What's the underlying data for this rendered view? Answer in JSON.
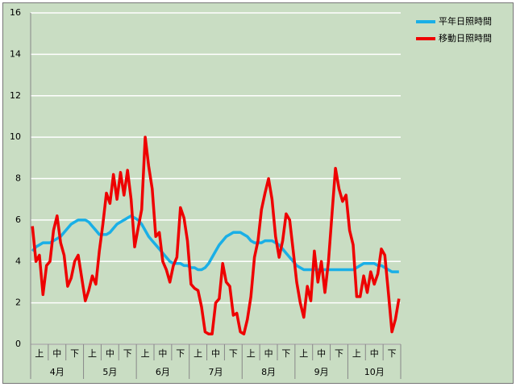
{
  "chart_data": {
    "type": "line",
    "categories": [
      null,
      null,
      "上",
      null,
      null,
      null,
      null,
      "中",
      null,
      null,
      null,
      null,
      "下",
      null,
      null,
      null,
      null,
      "上",
      null,
      null,
      null,
      null,
      "中",
      null,
      null,
      null,
      null,
      "下",
      null,
      null,
      null,
      null,
      "上",
      null,
      null,
      null,
      null,
      "中",
      null,
      null,
      null,
      null,
      "下",
      null,
      null,
      null,
      null,
      "上",
      null,
      null,
      null,
      null,
      "中",
      null,
      null,
      null,
      null,
      "下",
      null,
      null,
      null,
      null,
      "上",
      null,
      null,
      null,
      null,
      "中",
      null,
      null,
      null,
      null,
      "下",
      null,
      null,
      null,
      null,
      "上",
      null,
      null,
      null,
      null,
      "中",
      null,
      null,
      null,
      null,
      "下",
      null,
      null,
      null,
      null,
      "上",
      null,
      null,
      null,
      null,
      "中",
      null,
      null,
      null,
      null,
      "下",
      null,
      null
    ],
    "months": [
      "4月",
      "5月",
      "6月",
      "7月",
      "8月",
      "9月",
      "10月"
    ],
    "series": [
      {
        "name": "平年日照時間",
        "color": "#1aafe6",
        "values": [
          4.5,
          4.7,
          4.8,
          4.9,
          4.9,
          4.9,
          5.0,
          5.1,
          5.2,
          5.4,
          5.6,
          5.8,
          5.9,
          6.0,
          6.0,
          6.0,
          5.9,
          5.7,
          5.5,
          5.3,
          5.3,
          5.3,
          5.4,
          5.6,
          5.8,
          5.9,
          6.0,
          6.1,
          6.2,
          6.1,
          6.0,
          5.8,
          5.5,
          5.2,
          5.0,
          4.8,
          4.6,
          4.4,
          4.2,
          4.0,
          3.9,
          3.9,
          3.9,
          3.8,
          3.8,
          3.7,
          3.7,
          3.6,
          3.6,
          3.7,
          3.9,
          4.2,
          4.5,
          4.8,
          5.0,
          5.2,
          5.3,
          5.4,
          5.4,
          5.4,
          5.3,
          5.2,
          5.0,
          4.9,
          4.9,
          4.9,
          5.0,
          5.0,
          5.0,
          4.9,
          4.8,
          4.6,
          4.4,
          4.2,
          4.0,
          3.8,
          3.7,
          3.6,
          3.6,
          3.6,
          3.6,
          3.6,
          3.6,
          3.6,
          3.6,
          3.6,
          3.6,
          3.6,
          3.6,
          3.6,
          3.6,
          3.6,
          3.7,
          3.8,
          3.9,
          3.9,
          3.9,
          3.9,
          3.8,
          3.8,
          3.7,
          3.6,
          3.5,
          3.5,
          3.5
        ]
      },
      {
        "name": "移動日照時間",
        "color": "#ee0000",
        "values": [
          5.7,
          4.0,
          4.3,
          2.4,
          3.8,
          4.0,
          5.5,
          6.2,
          4.9,
          4.3,
          2.8,
          3.2,
          4.0,
          4.3,
          3.2,
          2.1,
          2.6,
          3.3,
          2.9,
          4.5,
          5.8,
          7.3,
          6.8,
          8.2,
          7.0,
          8.3,
          7.2,
          8.4,
          7.0,
          4.7,
          5.6,
          6.5,
          10.0,
          8.6,
          7.5,
          5.2,
          5.4,
          4.0,
          3.6,
          3.0,
          3.8,
          4.2,
          6.6,
          6.1,
          5.0,
          2.9,
          2.7,
          2.6,
          1.8,
          0.6,
          0.5,
          0.5,
          2.0,
          2.2,
          3.9,
          3.0,
          2.8,
          1.4,
          1.5,
          0.6,
          0.5,
          1.2,
          2.3,
          4.2,
          5.0,
          6.5,
          7.3,
          8.0,
          7.0,
          5.2,
          4.2,
          5.0,
          6.3,
          6.0,
          4.5,
          3.0,
          2.0,
          1.3,
          2.8,
          2.1,
          4.5,
          3.0,
          4.0,
          2.5,
          4.0,
          6.3,
          8.5,
          7.5,
          6.9,
          7.2,
          5.5,
          4.8,
          2.3,
          2.3,
          3.3,
          2.5,
          3.5,
          2.9,
          3.4,
          4.6,
          4.3,
          2.5,
          0.6,
          1.2,
          2.2
        ]
      }
    ],
    "ylim": [
      0,
      16
    ],
    "yticks": [
      0,
      2,
      4,
      6,
      8,
      10,
      12,
      14,
      16
    ],
    "grid": true,
    "legend": "right"
  }
}
